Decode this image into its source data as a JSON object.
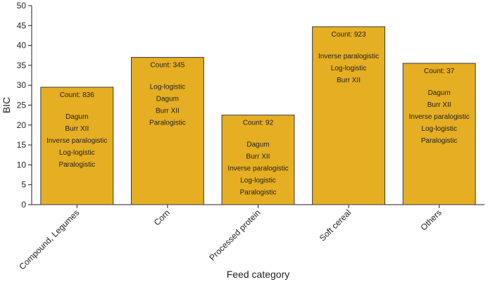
{
  "chart_data": {
    "type": "bar",
    "xlabel": "Feed category",
    "ylabel": "BIC",
    "ylim": [
      0,
      50
    ],
    "yticks": [
      0,
      5,
      10,
      15,
      20,
      25,
      30,
      35,
      40,
      45,
      50
    ],
    "grid": false,
    "legend": "none",
    "bar_color": "#E6AE22",
    "categories": [
      "Compound, Legumes",
      "Corn",
      "Processed protein",
      "Soft cereal",
      "Others"
    ],
    "values": [
      29.5,
      37.0,
      22.5,
      44.7,
      35.5
    ],
    "annotations": [
      {
        "count": "Count: 836",
        "distributions": [
          "Dagum",
          "Burr XII",
          "Inverse paralogistic",
          "Log-logistic",
          "Paralogistic"
        ]
      },
      {
        "count": "Count: 345",
        "distributions": [
          "Log-logistic",
          "Dagum",
          "Burr XII",
          "Paralogistic"
        ]
      },
      {
        "count": "Count: 92",
        "distributions": [
          "Dagum",
          "Burr XII",
          "Inverse paralogistic",
          "Log-logistic",
          "Paralogistic"
        ]
      },
      {
        "count": "Count: 923",
        "distributions": [
          "Inverse paralogistic",
          "Log-logistic",
          "Burr XII"
        ]
      },
      {
        "count": "Count: 37",
        "distributions": [
          "Dagum",
          "Burr XII",
          "Inverse paralogistic",
          "Log-logistic",
          "Paralogistic"
        ]
      }
    ]
  }
}
